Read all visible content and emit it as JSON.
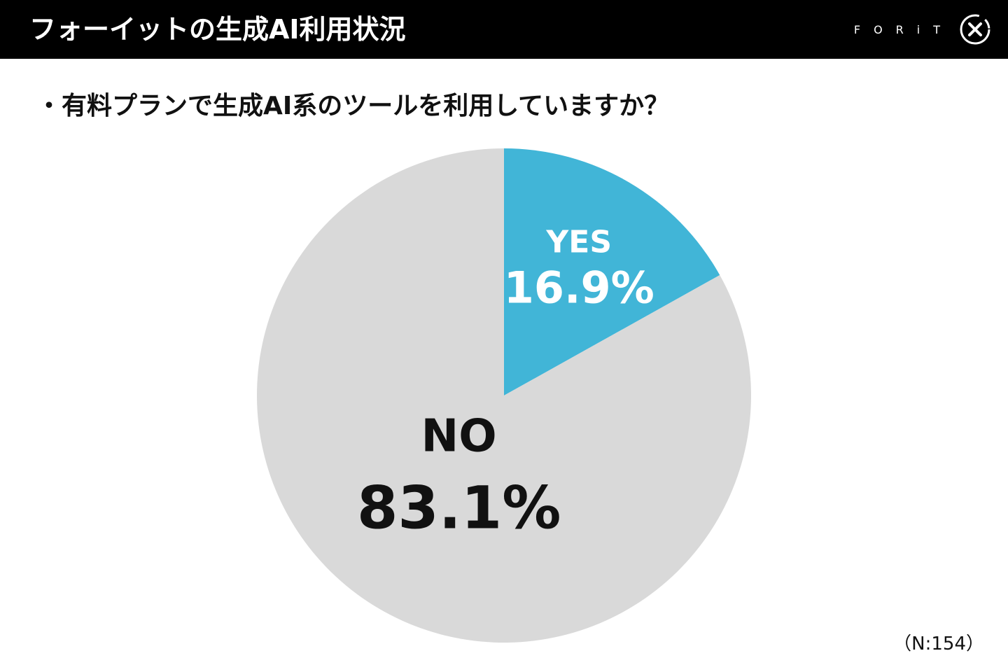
{
  "header": {
    "title": "フォーイットの生成AI利用状況",
    "brand": "FORiT",
    "background": "#000000",
    "logo_icon": "forit-x-circle-icon"
  },
  "question": "・有料プランで生成AI系のツールを利用していますか？",
  "note": "（N:154）",
  "chart_data": {
    "type": "pie",
    "categories": [
      "YES",
      "NO"
    ],
    "values": [
      16.9,
      83.1
    ],
    "unit": "%",
    "value_labels": [
      "16.9%",
      "83.1%"
    ],
    "colors": [
      "#41b5d7",
      "#d9d9d9"
    ],
    "label_colors": [
      "#ffffff",
      "#111111"
    ],
    "start": "12 o'clock",
    "direction": "clockwise",
    "legend": "none"
  }
}
